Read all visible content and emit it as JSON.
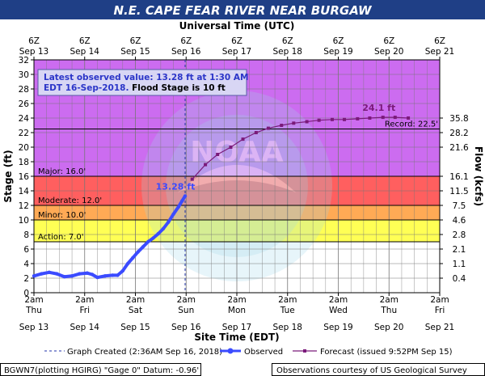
{
  "colors": {
    "title_bar": "#1f3f86",
    "title_text": "#ffffff",
    "stage_major": "#cc6cf0",
    "stage_moderate": "#ff5f5f",
    "stage_flood": "#ffaa55",
    "stage_minor": "#ffff55",
    "stage_action": "#ffffff",
    "observed": "#3b4bff",
    "forecast": "#7a1a7a",
    "grid": "#777777",
    "callout_bg": "#d8d6f4",
    "callout_text": "#2b35c8",
    "seal": "#9fd7e8"
  },
  "title": "N.E. CAPE FEAR RIVER NEAR BURGAW",
  "top_axis": {
    "title": "Universal Time (UTC)",
    "hour_labels": [
      "6Z",
      "6Z",
      "6Z",
      "6Z",
      "6Z",
      "6Z",
      "6Z",
      "6Z",
      "6Z"
    ],
    "date_labels": [
      "Sep 13",
      "Sep 14",
      "Sep 15",
      "Sep 16",
      "Sep 17",
      "Sep 18",
      "Sep 19",
      "Sep 20",
      "Sep 21"
    ]
  },
  "bottom_axis": {
    "title": "Site Time (EDT)",
    "hour_labels": [
      "2am",
      "2am",
      "2am",
      "2am",
      "2am",
      "2am",
      "2am",
      "2am",
      "2am"
    ],
    "day_labels": [
      "Thu",
      "Fri",
      "Sat",
      "Sun",
      "Mon",
      "Tue",
      "Wed",
      "Thu",
      "Fri"
    ],
    "date_labels": [
      "Sep 13",
      "Sep 14",
      "Sep 15",
      "Sep 16",
      "Sep 17",
      "Sep 18",
      "Sep 19",
      "Sep 20",
      "Sep 21"
    ]
  },
  "left_axis": {
    "title": "Stage (ft)",
    "ticks": [
      "0",
      "2",
      "4",
      "6",
      "8",
      "10",
      "12",
      "14",
      "16",
      "18",
      "20",
      "22",
      "24",
      "26",
      "28",
      "30",
      "32"
    ]
  },
  "right_axis": {
    "title": "Flow (kcfs)",
    "ticks": [
      {
        "stage": 2.0,
        "label": "0.4"
      },
      {
        "stage": 4.0,
        "label": "1.1"
      },
      {
        "stage": 6.0,
        "label": "2.1"
      },
      {
        "stage": 8.0,
        "label": "2.8"
      },
      {
        "stage": 10.0,
        "label": "4.6"
      },
      {
        "stage": 12.0,
        "label": "7.5"
      },
      {
        "stage": 14.0,
        "label": "11.5"
      },
      {
        "stage": 16.0,
        "label": "16.1"
      },
      {
        "stage": 20.0,
        "label": "21.6"
      },
      {
        "stage": 22.0,
        "label": "28.2"
      },
      {
        "stage": 24.0,
        "label": "35.8"
      }
    ]
  },
  "flood_stages": {
    "major": "Major: 16.0'",
    "moderate": "Moderate: 12.0'",
    "minor": "Minor: 10.0'",
    "action": "Action: 7.0'",
    "record": "Record: 22.5'"
  },
  "callout": {
    "line1": "Latest observed value: 13.28 ft at 1:30 AM",
    "line2_a": "EDT 16-Sep-2018.",
    "line2_b": " Flood Stage is 10 ft"
  },
  "labels": {
    "latest": "13.28 ft",
    "peak": "24.1 ft",
    "noaa": "NOAA"
  },
  "legend": {
    "created": "Graph Created (2:36AM Sep 16, 2018)",
    "observed": "Observed",
    "forecast": "Forecast (issued 9:52PM Sep 15)"
  },
  "footer": {
    "left": "BGWN7(plotting HGIRG) \"Gage 0\" Datum: -0.96'",
    "right": "Observations courtesy of US Geological Survey"
  },
  "chart_data": {
    "type": "line",
    "title": "N.E. CAPE FEAR RIVER NEAR BURGAW",
    "xlabel": "Site Time (EDT)",
    "ylabel": "Stage (ft)",
    "y2label": "Flow (kcfs)",
    "x_units": "days since 2am EDT Sep 13",
    "xlim": [
      0,
      8
    ],
    "ylim": [
      0,
      32
    ],
    "grid": true,
    "thresholds": {
      "action": 7.0,
      "minor": 10.0,
      "flood": 10.0,
      "moderate": 12.0,
      "major": 16.0,
      "record": 22.5
    },
    "graph_created_x": 2.98,
    "series": [
      {
        "name": "Observed",
        "points": [
          [
            0.0,
            2.3
          ],
          [
            0.15,
            2.6
          ],
          [
            0.3,
            2.8
          ],
          [
            0.45,
            2.6
          ],
          [
            0.6,
            2.2
          ],
          [
            0.75,
            2.3
          ],
          [
            0.9,
            2.6
          ],
          [
            1.05,
            2.7
          ],
          [
            1.15,
            2.5
          ],
          [
            1.25,
            2.1
          ],
          [
            1.4,
            2.3
          ],
          [
            1.55,
            2.4
          ],
          [
            1.65,
            2.4
          ],
          [
            1.75,
            3.0
          ],
          [
            1.85,
            4.0
          ],
          [
            1.95,
            4.8
          ],
          [
            2.05,
            5.6
          ],
          [
            2.15,
            6.3
          ],
          [
            2.25,
            7.0
          ],
          [
            2.35,
            7.5
          ],
          [
            2.45,
            8.1
          ],
          [
            2.55,
            8.8
          ],
          [
            2.65,
            9.7
          ],
          [
            2.75,
            10.8
          ],
          [
            2.85,
            11.8
          ],
          [
            2.92,
            12.6
          ],
          [
            2.98,
            13.28
          ]
        ]
      },
      {
        "name": "Forecast (issued 9:52PM Sep 15)",
        "points": [
          [
            3.12,
            15.6
          ],
          [
            3.38,
            17.6
          ],
          [
            3.62,
            19.0
          ],
          [
            3.88,
            20.0
          ],
          [
            4.12,
            21.1
          ],
          [
            4.38,
            22.0
          ],
          [
            4.62,
            22.6
          ],
          [
            4.88,
            23.0
          ],
          [
            5.12,
            23.3
          ],
          [
            5.38,
            23.5
          ],
          [
            5.62,
            23.7
          ],
          [
            5.88,
            23.8
          ],
          [
            6.12,
            23.8
          ],
          [
            6.38,
            23.9
          ],
          [
            6.62,
            24.0
          ],
          [
            6.88,
            24.1
          ],
          [
            7.12,
            24.1
          ],
          [
            7.38,
            24.0
          ]
        ]
      }
    ]
  }
}
